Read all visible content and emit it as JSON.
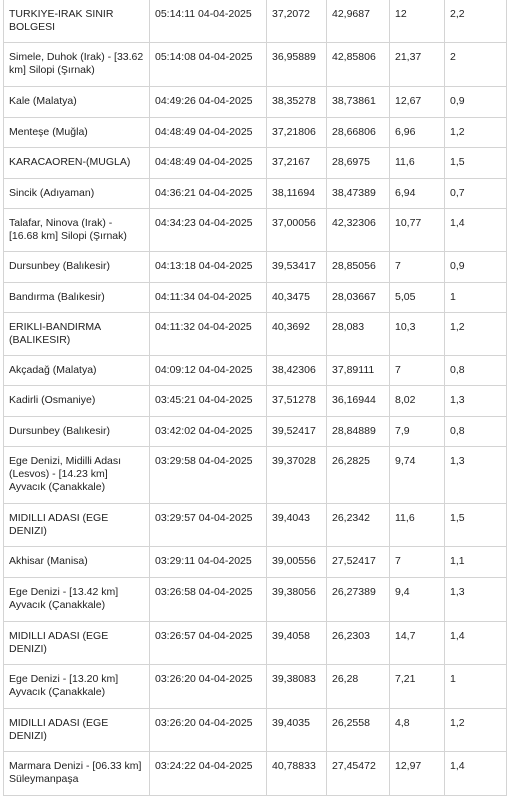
{
  "rows": [
    {
      "location": "TURKIYE-IRAK SINIR BOLGESI",
      "datetime": "05:14:11 04-04-2025",
      "lat": "37,2072",
      "lon": "42,9687",
      "depth": "12",
      "magnitude": "2,2"
    },
    {
      "location": "Simele, Duhok (Irak) - [33.62 km] Silopi (Şırnak)",
      "datetime": "05:14:08 04-04-2025",
      "lat": "36,95889",
      "lon": "42,85806",
      "depth": "21,37",
      "magnitude": "2"
    },
    {
      "location": "Kale (Malatya)",
      "datetime": "04:49:26 04-04-2025",
      "lat": "38,35278",
      "lon": "38,73861",
      "depth": "12,67",
      "magnitude": "0,9"
    },
    {
      "location": "Menteşe (Muğla)",
      "datetime": "04:48:49 04-04-2025",
      "lat": "37,21806",
      "lon": "28,66806",
      "depth": "6,96",
      "magnitude": "1,2"
    },
    {
      "location": "KARACAOREN-(MUGLA)",
      "datetime": "04:48:49 04-04-2025",
      "lat": "37,2167",
      "lon": "28,6975",
      "depth": "11,6",
      "magnitude": "1,5"
    },
    {
      "location": "Sincik (Adıyaman)",
      "datetime": "04:36:21 04-04-2025",
      "lat": "38,11694",
      "lon": "38,47389",
      "depth": "6,94",
      "magnitude": "0,7"
    },
    {
      "location": "Talafar, Ninova (Irak) - [16.68 km] Silopi (Şırnak)",
      "datetime": "04:34:23 04-04-2025",
      "lat": "37,00056",
      "lon": "42,32306",
      "depth": "10,77",
      "magnitude": "1,4"
    },
    {
      "location": "Dursunbey (Balıkesir)",
      "datetime": "04:13:18 04-04-2025",
      "lat": "39,53417",
      "lon": "28,85056",
      "depth": "7",
      "magnitude": "0,9"
    },
    {
      "location": "Bandırma (Balıkesir)",
      "datetime": "04:11:34 04-04-2025",
      "lat": "40,3475",
      "lon": "28,03667",
      "depth": "5,05",
      "magnitude": "1"
    },
    {
      "location": "ERIKLI-BANDIRMA (BALIKESIR)",
      "datetime": "04:11:32 04-04-2025",
      "lat": "40,3692",
      "lon": "28,083",
      "depth": "10,3",
      "magnitude": "1,2"
    },
    {
      "location": "Akçadağ (Malatya)",
      "datetime": "04:09:12 04-04-2025",
      "lat": "38,42306",
      "lon": "37,89111",
      "depth": "7",
      "magnitude": "0,8"
    },
    {
      "location": "Kadirli (Osmaniye)",
      "datetime": "03:45:21 04-04-2025",
      "lat": "37,51278",
      "lon": "36,16944",
      "depth": "8,02",
      "magnitude": "1,3"
    },
    {
      "location": "Dursunbey (Balıkesir)",
      "datetime": "03:42:02 04-04-2025",
      "lat": "39,52417",
      "lon": "28,84889",
      "depth": "7,9",
      "magnitude": "0,8"
    },
    {
      "location": "Ege Denizi, Midilli Adası (Lesvos) - [14.23 km] Ayvacık (Çanakkale)",
      "datetime": "03:29:58 04-04-2025",
      "lat": "39,37028",
      "lon": "26,2825",
      "depth": "9,74",
      "magnitude": "1,3"
    },
    {
      "location": "MIDILLI ADASI (EGE DENIZI)",
      "datetime": "03:29:57 04-04-2025",
      "lat": "39,4043",
      "lon": "26,2342",
      "depth": "11,6",
      "magnitude": "1,5"
    },
    {
      "location": "Akhisar (Manisa)",
      "datetime": "03:29:11 04-04-2025",
      "lat": "39,00556",
      "lon": "27,52417",
      "depth": "7",
      "magnitude": "1,1"
    },
    {
      "location": "Ege Denizi - [13.42 km] Ayvacık (Çanakkale)",
      "datetime": "03:26:58 04-04-2025",
      "lat": "39,38056",
      "lon": "26,27389",
      "depth": "9,4",
      "magnitude": "1,3"
    },
    {
      "location": "MIDILLI ADASI (EGE DENIZI)",
      "datetime": "03:26:57 04-04-2025",
      "lat": "39,4058",
      "lon": "26,2303",
      "depth": "14,7",
      "magnitude": "1,4"
    },
    {
      "location": "Ege Denizi - [13.20 km] Ayvacık (Çanakkale)",
      "datetime": "03:26:20 04-04-2025",
      "lat": "39,38083",
      "lon": "26,28",
      "depth": "7,21",
      "magnitude": "1"
    },
    {
      "location": "MIDILLI ADASI (EGE DENIZI)",
      "datetime": "03:26:20 04-04-2025",
      "lat": "39,4035",
      "lon": "26,2558",
      "depth": "4,8",
      "magnitude": "1,2"
    },
    {
      "location": "Marmara Denizi - [06.33 km] Süleymanpaşa",
      "datetime": "03:24:22 04-04-2025",
      "lat": "40,78833",
      "lon": "27,45472",
      "depth": "12,97",
      "magnitude": "1,4"
    }
  ]
}
